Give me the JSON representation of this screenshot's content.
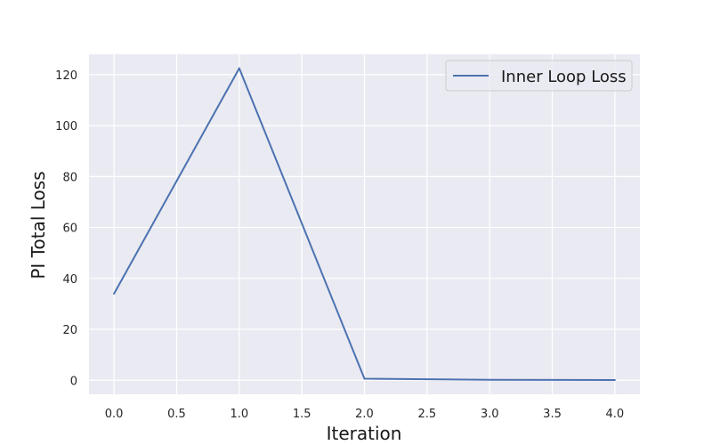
{
  "chart_data": {
    "type": "line",
    "title": "",
    "xlabel": "Iteration",
    "ylabel": "PI Total Loss",
    "x": [
      0,
      1,
      2,
      3,
      4
    ],
    "series": [
      {
        "name": "Inner Loop Loss",
        "values": [
          34,
          122.5,
          0.6,
          0.2,
          0.1
        ]
      }
    ],
    "xlim": [
      -0.2,
      4.2
    ],
    "ylim": [
      -5.5,
      128
    ],
    "xticks": [
      0,
      0.5,
      1,
      1.5,
      2,
      2.5,
      3,
      3.5,
      4
    ],
    "xtick_labels": [
      "0.0",
      "0.5",
      "1.0",
      "1.5",
      "2.0",
      "2.5",
      "3.0",
      "3.5",
      "4.0"
    ],
    "yticks": [
      0,
      20,
      40,
      60,
      80,
      100,
      120
    ],
    "ytick_labels": [
      "0",
      "20",
      "40",
      "60",
      "80",
      "100",
      "120"
    ],
    "grid": true,
    "legend_position": "top-right",
    "colors": {
      "plot_background": "#eaeaf2",
      "grid": "#ffffff",
      "line": "#4c72b0"
    }
  }
}
